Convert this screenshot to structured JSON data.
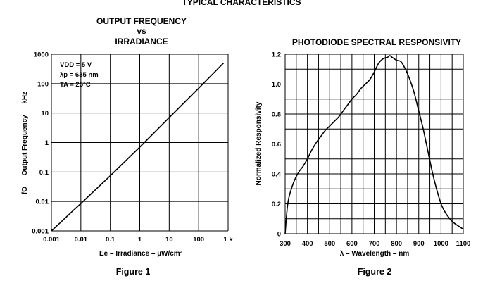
{
  "page": {
    "header": "TYPICAL CHARACTERISTICS",
    "figure1_caption": "Figure 1",
    "figure2_caption": "Figure 2"
  },
  "chart_data": [
    {
      "type": "line",
      "title_lines": [
        "OUTPUT FREQUENCY",
        "vs",
        "IRRADIANCE"
      ],
      "xlabel": "Ee – Irradiance – µW/cm²",
      "ylabel": "fO — Output Frequency — kHz",
      "xscale": "log",
      "yscale": "log",
      "xlim": [
        0.001,
        1000
      ],
      "ylim": [
        0.001,
        1000
      ],
      "x_tick_labels": [
        "0.001",
        "0.01",
        "0.1",
        "1",
        "10",
        "100",
        "1 k"
      ],
      "y_tick_labels": [
        "0.001",
        "0.01",
        "0.1",
        "1",
        "10",
        "100",
        "1000"
      ],
      "grid": true,
      "annotation_lines": [
        "VDD = 5 V",
        "λp = 635 nm",
        "TA = 25°C"
      ],
      "series": [
        {
          "x": [
            0.001,
            0.002,
            0.005,
            0.01,
            0.1,
            1,
            10,
            100,
            700
          ],
          "y": [
            0.001,
            0.0019,
            0.0045,
            0.0085,
            0.075,
            0.7,
            7,
            70,
            500
          ]
        }
      ]
    },
    {
      "type": "line",
      "title": "PHOTODIODE SPECTRAL RESPONSIVITY",
      "xlabel": "λ – Wavelength – nm",
      "ylabel": "Normalized Responsivity",
      "xlim": [
        300,
        1100
      ],
      "ylim": [
        0,
        1.2
      ],
      "x_ticks": [
        300,
        400,
        500,
        600,
        700,
        800,
        900,
        1000,
        1100
      ],
      "y_ticks": [
        0,
        0.2,
        0.4,
        0.6,
        0.8,
        1.0,
        1.2
      ],
      "y_tick_labels": [
        "0",
        "0.2",
        "0.4",
        "0.6",
        "0.8",
        "1.0",
        "1.2"
      ],
      "grid": true,
      "series": [
        {
          "x": [
            300,
            310,
            320,
            340,
            360,
            380,
            400,
            420,
            440,
            460,
            480,
            500,
            520,
            540,
            560,
            580,
            600,
            620,
            640,
            660,
            680,
            700,
            720,
            740,
            760,
            770,
            780,
            800,
            820,
            840,
            860,
            880,
            900,
            920,
            940,
            960,
            980,
            1000,
            1020,
            1040,
            1060,
            1080,
            1100
          ],
          "y": [
            0.0,
            0.18,
            0.26,
            0.35,
            0.41,
            0.45,
            0.5,
            0.56,
            0.61,
            0.65,
            0.69,
            0.72,
            0.75,
            0.78,
            0.82,
            0.86,
            0.9,
            0.93,
            0.97,
            1.0,
            1.03,
            1.08,
            1.14,
            1.17,
            1.18,
            1.19,
            1.18,
            1.16,
            1.15,
            1.1,
            1.03,
            0.94,
            0.82,
            0.7,
            0.56,
            0.42,
            0.3,
            0.2,
            0.14,
            0.1,
            0.07,
            0.05,
            0.03
          ]
        }
      ]
    }
  ]
}
